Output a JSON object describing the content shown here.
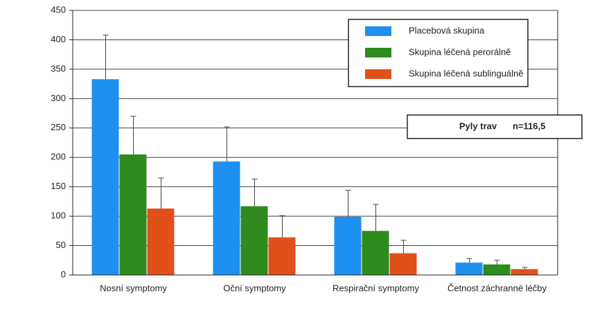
{
  "chart_data": {
    "type": "bar",
    "categories": [
      "Nosní symptomy",
      "Oční symptomy",
      "Respirační symptomy",
      "Četnost záchranné léčby"
    ],
    "series": [
      {
        "name": "Placebová skupina",
        "color": "#1e90f0",
        "values": [
          333,
          193,
          99,
          21
        ],
        "errors": [
          75,
          59,
          45,
          7
        ]
      },
      {
        "name": "Skupina léčená perorálně",
        "color": "#2e8b1e",
        "values": [
          205,
          117,
          75,
          18
        ],
        "errors": [
          65,
          46,
          45,
          7
        ]
      },
      {
        "name": "Skupina léčená sublinguálně",
        "color": "#e0501a",
        "values": [
          113,
          64,
          37,
          10
        ],
        "errors": [
          52,
          37,
          22,
          3
        ]
      }
    ],
    "ylim": [
      0,
      450
    ],
    "yticks": [
      0,
      50,
      100,
      150,
      200,
      250,
      300,
      350,
      400,
      450
    ],
    "grid": true,
    "annotation": {
      "label": "Pyly trav",
      "n": "n=116,5"
    }
  }
}
